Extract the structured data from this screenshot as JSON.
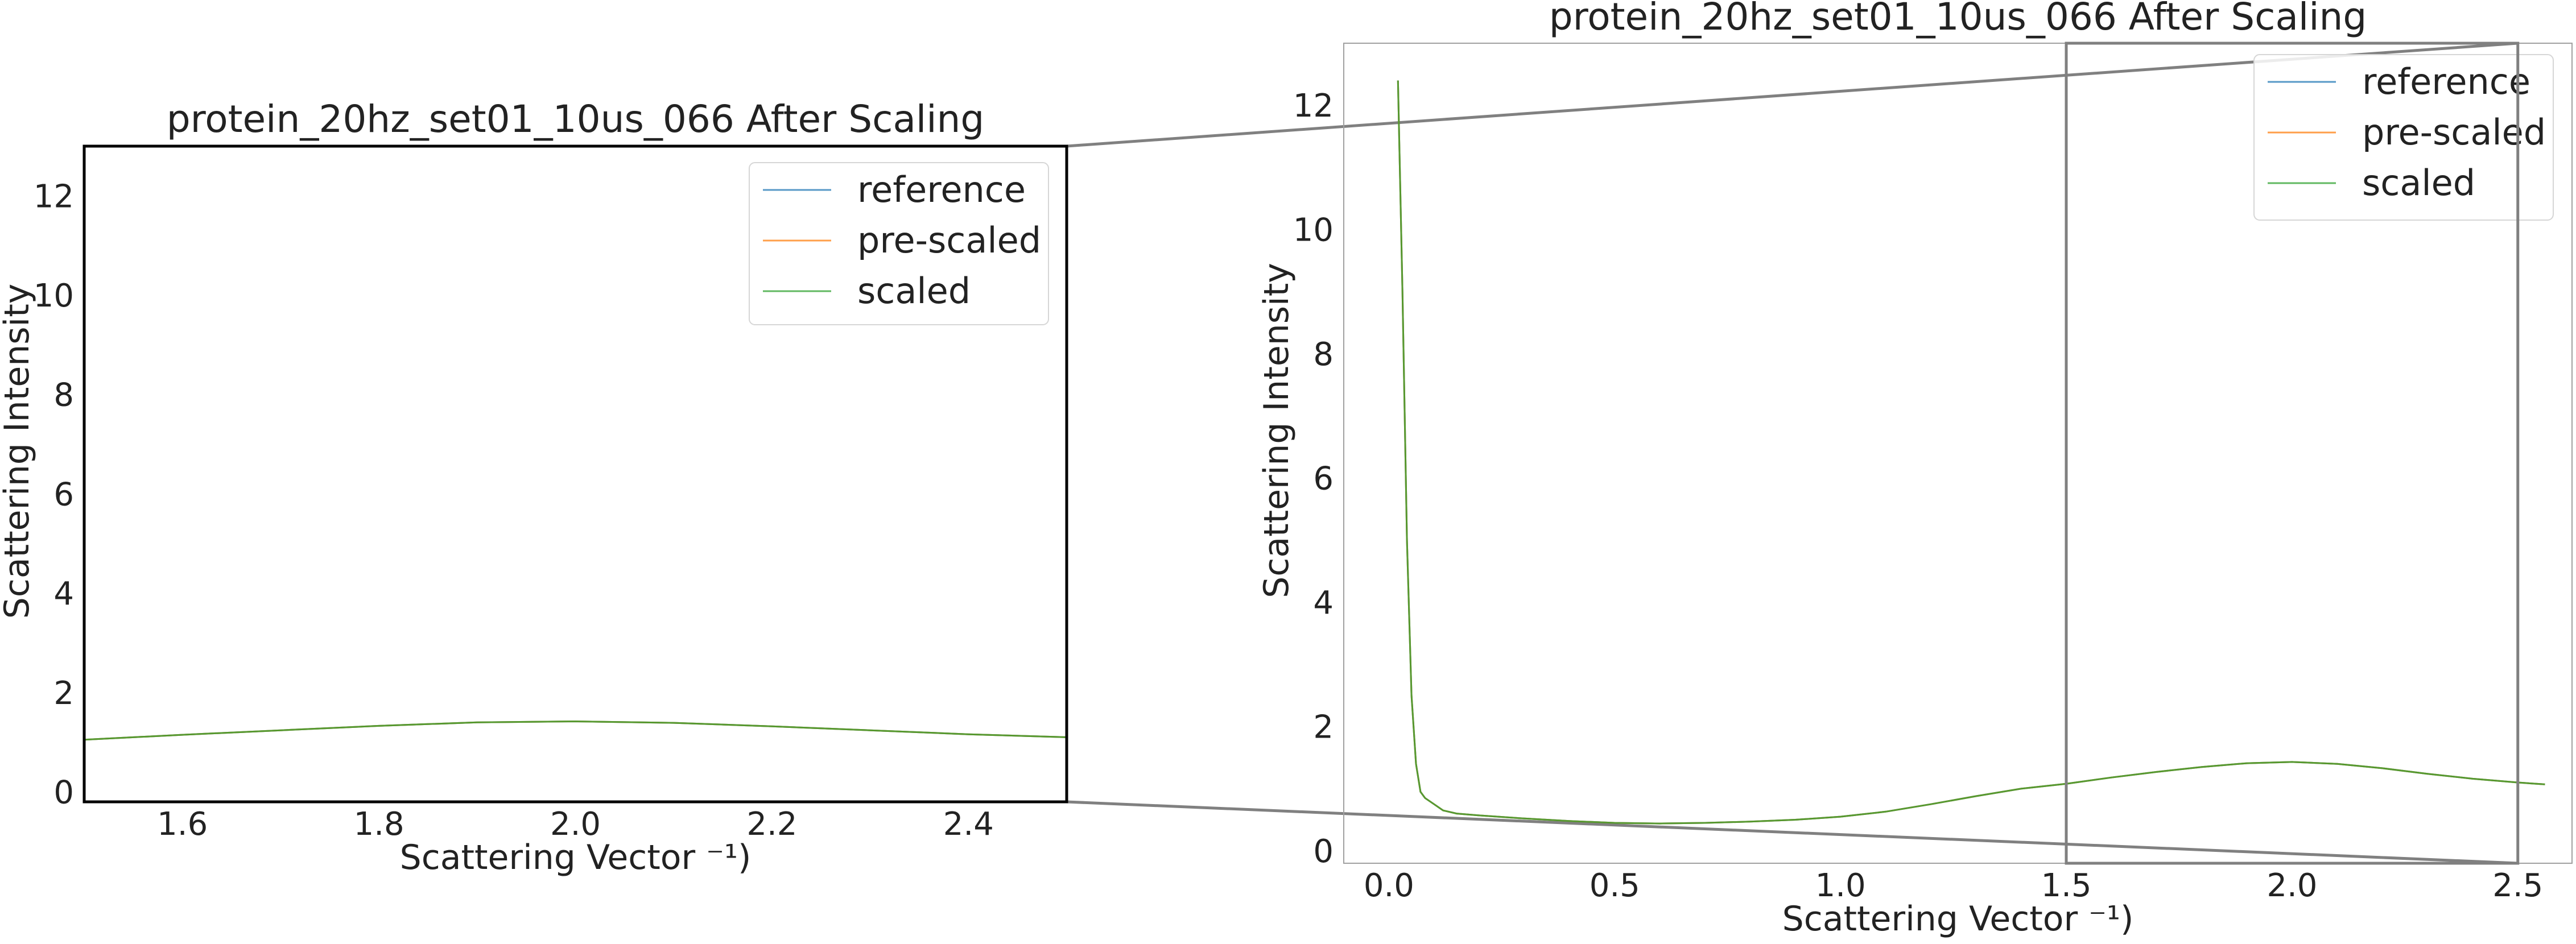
{
  "figure": {
    "background": "#ffffff",
    "zoom_connector_color": "#808080"
  },
  "series_styles": [
    {
      "name": "reference",
      "color": "#1f77b4"
    },
    {
      "name": "pre-scaled",
      "color": "#ff7f0e"
    },
    {
      "name": "scaled",
      "color": "#2ca02c"
    }
  ],
  "chart_data": [
    {
      "type": "line",
      "title": "protein_20hz_set01_10us_066 After Scaling",
      "xlabel": "Scattering Vector ⁻¹)",
      "ylabel": "Scattering Intensity",
      "xlim": [
        1.5,
        2.5
      ],
      "ylim": [
        -0.2,
        13.0
      ],
      "xticks": [
        1.6,
        1.8,
        2.0,
        2.2,
        2.4
      ],
      "xtick_labels": [
        "1.6",
        "1.8",
        "2.0",
        "2.2",
        "2.4"
      ],
      "yticks": [
        0,
        2,
        4,
        6,
        8,
        10,
        12
      ],
      "ytick_labels": [
        "0",
        "2",
        "4",
        "6",
        "8",
        "10",
        "12"
      ],
      "grid": false,
      "legend_position": "top-right",
      "legend": [
        "reference",
        "pre-scaled",
        "scaled"
      ],
      "series": [
        {
          "name": "reference",
          "x": [
            1.5,
            1.6,
            1.7,
            1.8,
            1.9,
            2.0,
            2.1,
            2.2,
            2.3,
            2.4,
            2.5
          ],
          "y": [
            1.05,
            1.15,
            1.24,
            1.33,
            1.4,
            1.42,
            1.39,
            1.32,
            1.24,
            1.16,
            1.1
          ]
        },
        {
          "name": "pre-scaled",
          "x": [
            1.5,
            1.6,
            1.7,
            1.8,
            1.9,
            2.0,
            2.1,
            2.2,
            2.3,
            2.4,
            2.5
          ],
          "y": [
            1.05,
            1.15,
            1.24,
            1.33,
            1.4,
            1.42,
            1.39,
            1.32,
            1.24,
            1.16,
            1.1
          ]
        },
        {
          "name": "scaled",
          "x": [
            1.5,
            1.6,
            1.7,
            1.8,
            1.9,
            2.0,
            2.1,
            2.2,
            2.3,
            2.4,
            2.5
          ],
          "y": [
            1.05,
            1.15,
            1.24,
            1.33,
            1.4,
            1.42,
            1.39,
            1.32,
            1.24,
            1.16,
            1.1
          ]
        }
      ]
    },
    {
      "type": "line",
      "title": "protein_20hz_set01_10us_066 After Scaling",
      "xlabel": "Scattering Vector ⁻¹)",
      "ylabel": "Scattering Intensity",
      "xlim": [
        -0.1,
        2.62
      ],
      "ylim": [
        -0.2,
        13.0
      ],
      "xticks": [
        0.0,
        0.5,
        1.0,
        1.5,
        2.0,
        2.5
      ],
      "xtick_labels": [
        "0.0",
        "0.5",
        "1.0",
        "1.5",
        "2.0",
        "2.5"
      ],
      "yticks": [
        0,
        2,
        4,
        6,
        8,
        10,
        12
      ],
      "ytick_labels": [
        "0",
        "2",
        "4",
        "6",
        "8",
        "10",
        "12"
      ],
      "grid": false,
      "legend_position": "top-right",
      "legend": [
        "reference",
        "pre-scaled",
        "scaled"
      ],
      "zoom_region": {
        "xlim": [
          1.5,
          2.5
        ],
        "ylim": [
          -0.2,
          13.0
        ]
      },
      "series": [
        {
          "name": "reference",
          "x": [
            0.02,
            0.03,
            0.04,
            0.05,
            0.06,
            0.07,
            0.08,
            0.1,
            0.12,
            0.15,
            0.2,
            0.3,
            0.4,
            0.5,
            0.6,
            0.7,
            0.8,
            0.9,
            1.0,
            1.1,
            1.2,
            1.3,
            1.4,
            1.5,
            1.6,
            1.7,
            1.8,
            1.9,
            2.0,
            2.1,
            2.2,
            2.3,
            2.4,
            2.5,
            2.56
          ],
          "y": [
            12.4,
            9.0,
            5.0,
            2.5,
            1.4,
            0.95,
            0.85,
            0.75,
            0.65,
            0.6,
            0.57,
            0.52,
            0.48,
            0.45,
            0.44,
            0.45,
            0.47,
            0.5,
            0.55,
            0.63,
            0.75,
            0.88,
            1.0,
            1.08,
            1.18,
            1.27,
            1.35,
            1.41,
            1.43,
            1.4,
            1.33,
            1.24,
            1.16,
            1.1,
            1.07
          ]
        },
        {
          "name": "pre-scaled",
          "x": [
            0.02,
            0.03,
            0.04,
            0.05,
            0.06,
            0.07,
            0.08,
            0.1,
            0.12,
            0.15,
            0.2,
            0.3,
            0.4,
            0.5,
            0.6,
            0.7,
            0.8,
            0.9,
            1.0,
            1.1,
            1.2,
            1.3,
            1.4,
            1.5,
            1.6,
            1.7,
            1.8,
            1.9,
            2.0,
            2.1,
            2.2,
            2.3,
            2.4,
            2.5,
            2.56
          ],
          "y": [
            12.4,
            9.0,
            5.0,
            2.5,
            1.4,
            0.95,
            0.85,
            0.75,
            0.65,
            0.6,
            0.57,
            0.52,
            0.48,
            0.45,
            0.44,
            0.45,
            0.47,
            0.5,
            0.55,
            0.63,
            0.75,
            0.88,
            1.0,
            1.08,
            1.18,
            1.27,
            1.35,
            1.41,
            1.43,
            1.4,
            1.33,
            1.24,
            1.16,
            1.1,
            1.07
          ]
        },
        {
          "name": "scaled",
          "x": [
            0.02,
            0.03,
            0.04,
            0.05,
            0.06,
            0.07,
            0.08,
            0.1,
            0.12,
            0.15,
            0.2,
            0.3,
            0.4,
            0.5,
            0.6,
            0.7,
            0.8,
            0.9,
            1.0,
            1.1,
            1.2,
            1.3,
            1.4,
            1.5,
            1.6,
            1.7,
            1.8,
            1.9,
            2.0,
            2.1,
            2.2,
            2.3,
            2.4,
            2.5,
            2.56
          ],
          "y": [
            12.4,
            9.0,
            5.0,
            2.5,
            1.4,
            0.95,
            0.85,
            0.75,
            0.65,
            0.6,
            0.57,
            0.52,
            0.48,
            0.45,
            0.44,
            0.45,
            0.47,
            0.5,
            0.55,
            0.63,
            0.75,
            0.88,
            1.0,
            1.08,
            1.18,
            1.27,
            1.35,
            1.41,
            1.43,
            1.4,
            1.33,
            1.24,
            1.16,
            1.1,
            1.07
          ]
        }
      ]
    }
  ]
}
